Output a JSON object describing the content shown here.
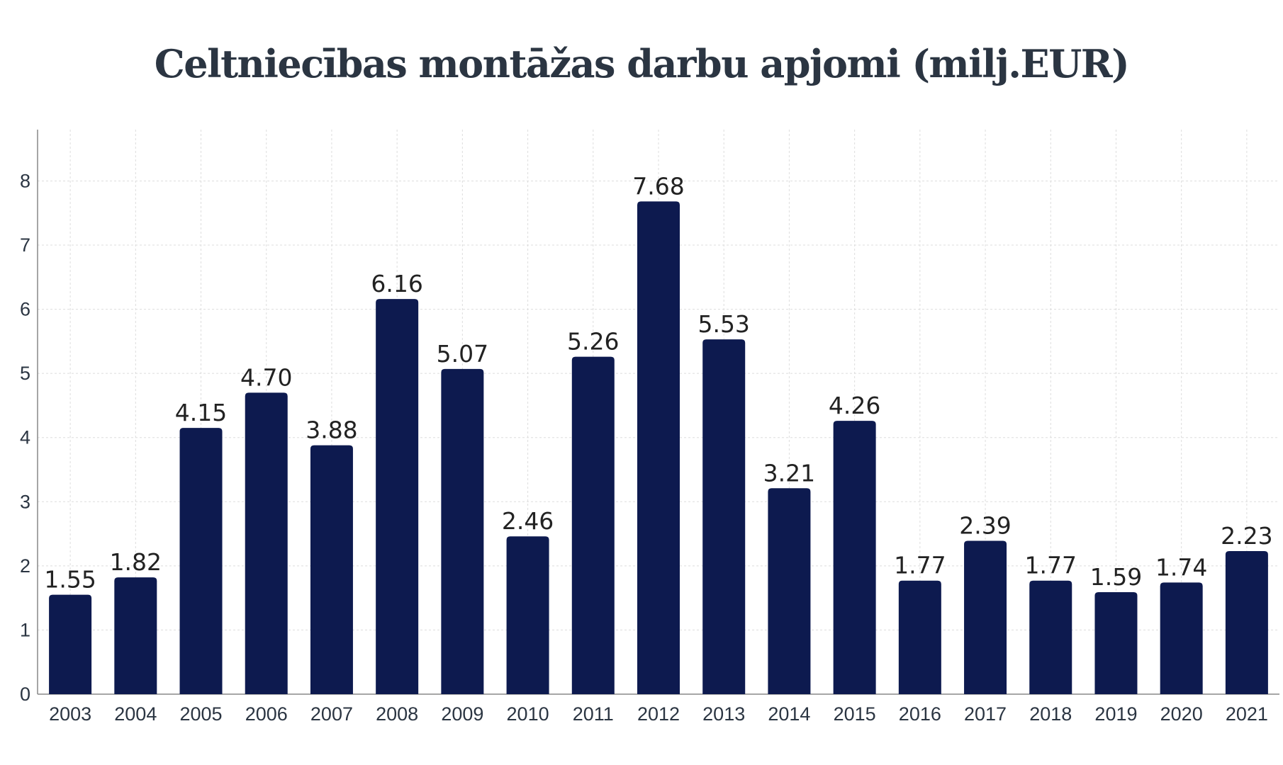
{
  "chart_data": {
    "type": "bar",
    "title": "Celtniecības montāžas darbu apjomi (milj.EUR)",
    "xlabel": "",
    "ylabel": "",
    "categories": [
      "2003",
      "2004",
      "2005",
      "2006",
      "2007",
      "2008",
      "2009",
      "2010",
      "2011",
      "2012",
      "2013",
      "2014",
      "2015",
      "2016",
      "2017",
      "2018",
      "2019",
      "2020",
      "2021"
    ],
    "values": [
      1.55,
      1.82,
      4.15,
      4.7,
      3.88,
      6.16,
      5.07,
      2.46,
      5.26,
      7.68,
      5.53,
      3.21,
      4.26,
      1.77,
      2.39,
      1.77,
      1.59,
      1.74,
      2.23
    ],
    "value_labels": [
      "1.55",
      "1.82",
      "4.15",
      "4.70",
      "3.88",
      "6.16",
      "5.07",
      "2.46",
      "5.26",
      "7.68",
      "5.53",
      "3.21",
      "4.26",
      "1.77",
      "2.39",
      "1.77",
      "1.59",
      "1.74",
      "2.23"
    ],
    "ylim": [
      0,
      8.8
    ],
    "yticks": [
      0,
      1,
      2,
      3,
      4,
      5,
      6,
      7,
      8
    ],
    "grid": true,
    "legend": "none",
    "colors": {
      "bar": "#0d1a4f",
      "grid": "#dddddd",
      "axis": "#888888",
      "text": "#2b3542"
    }
  }
}
